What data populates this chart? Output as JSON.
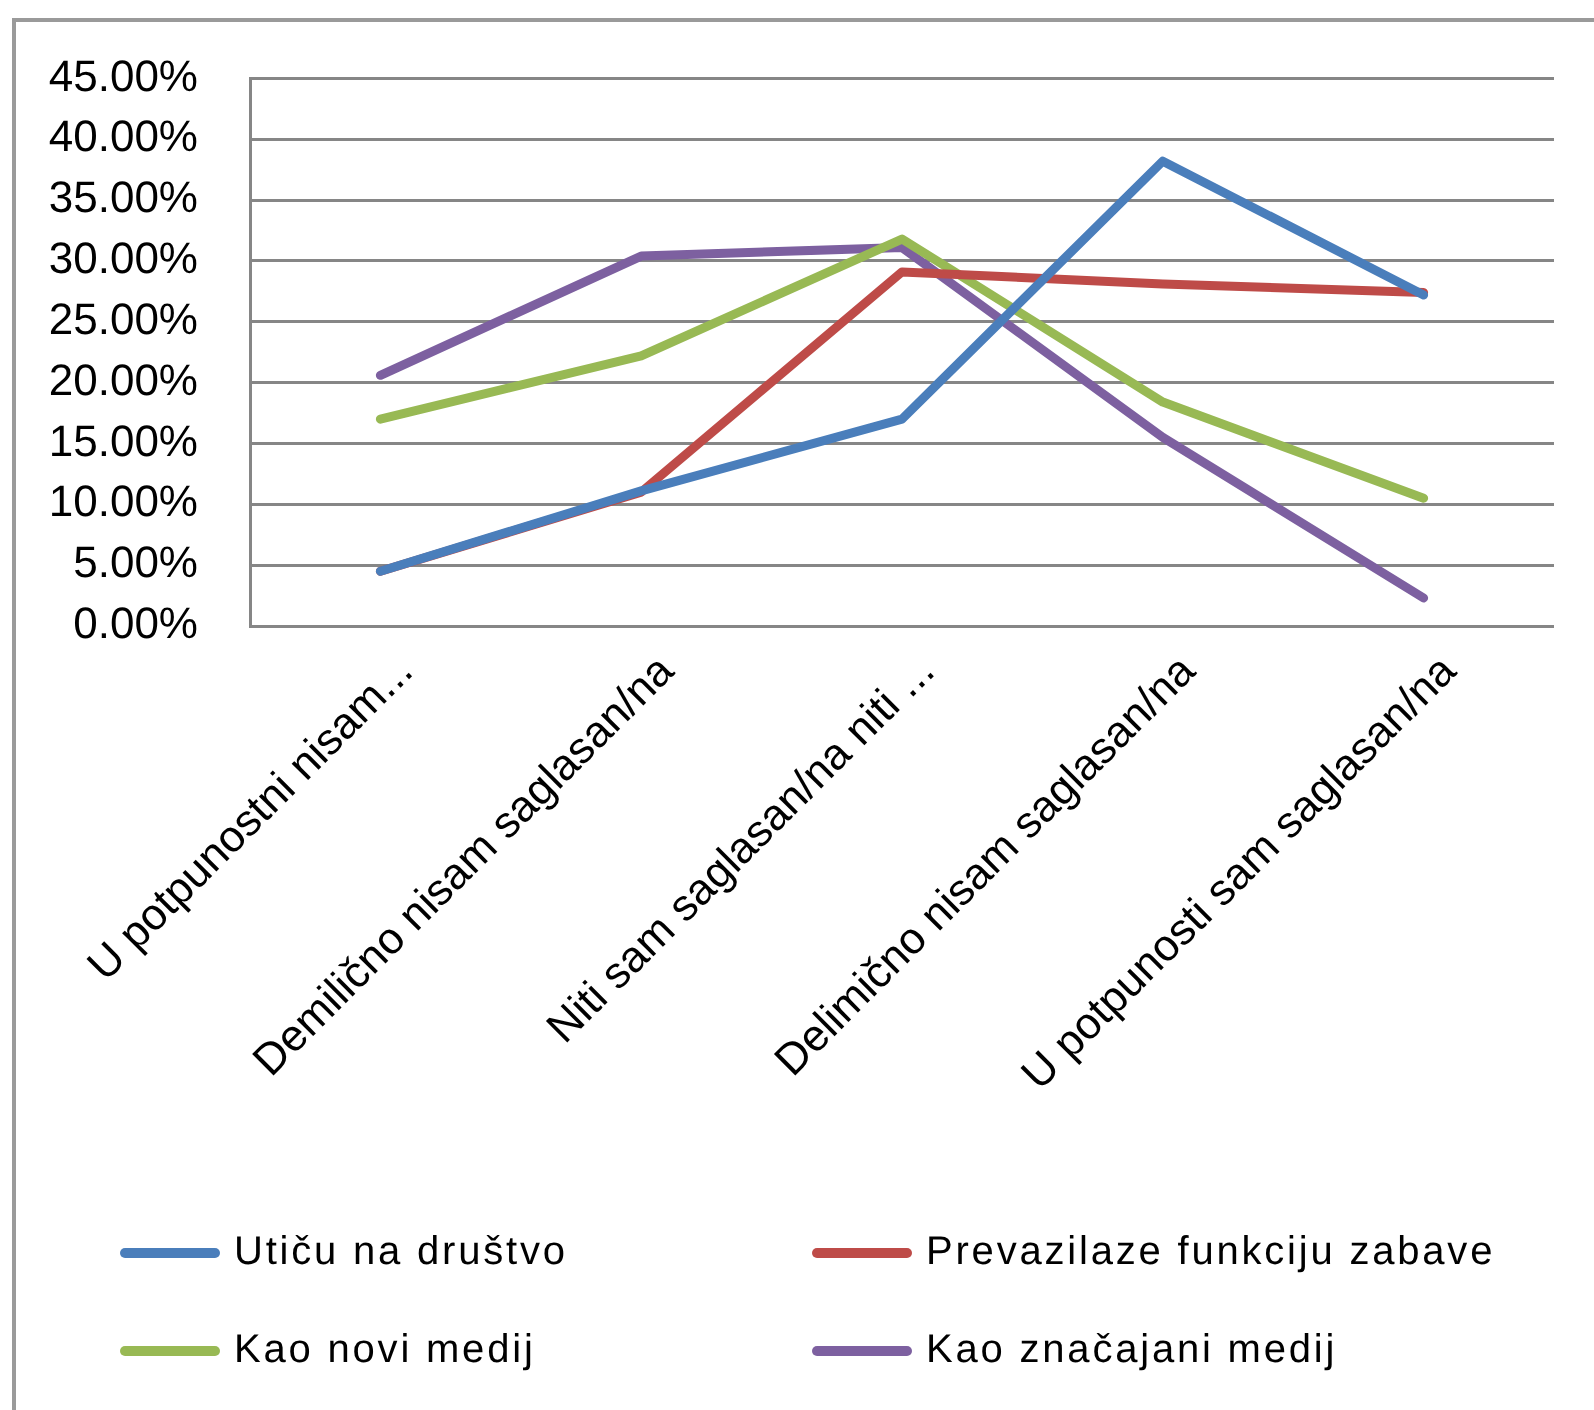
{
  "chart_data": {
    "type": "line",
    "categories": [
      "U potpunostni nisam...",
      "Demilično nisam saglasan/na",
      "Niti sam saglasan/na niti ...",
      "Delimično nisam saglasan/na",
      "U potpunosti sam saglasan/na"
    ],
    "series": [
      {
        "name": "Utiču na društvo",
        "color": "#4a7ebb",
        "values": [
          4.5,
          11.1,
          17.0,
          38.2,
          27.2
        ]
      },
      {
        "name": "Prevazilaze funkciju zabave",
        "color": "#be4b48",
        "values": [
          4.5,
          11.0,
          29.1,
          28.1,
          27.4
        ]
      },
      {
        "name": "Kao novi medij",
        "color": "#98b954",
        "values": [
          17.0,
          22.2,
          31.8,
          18.4,
          10.5
        ]
      },
      {
        "name": "Kao značajani medij",
        "color": "#7d60a0",
        "values": [
          20.6,
          30.4,
          31.1,
          15.5,
          2.3
        ]
      }
    ],
    "ylim": [
      0,
      45
    ],
    "yticks": [
      {
        "value": 0,
        "label": "0.00%"
      },
      {
        "value": 5,
        "label": "5.00%"
      },
      {
        "value": 10,
        "label": "10.00%"
      },
      {
        "value": 15,
        "label": "15.00%"
      },
      {
        "value": 20,
        "label": "20.00%"
      },
      {
        "value": 25,
        "label": "25.00%"
      },
      {
        "value": 30,
        "label": "30.00%"
      },
      {
        "value": 35,
        "label": "35.00%"
      },
      {
        "value": 40,
        "label": "40.00%"
      },
      {
        "value": 45,
        "label": "45.00%"
      }
    ],
    "grid": "y",
    "legend": "bottom"
  }
}
